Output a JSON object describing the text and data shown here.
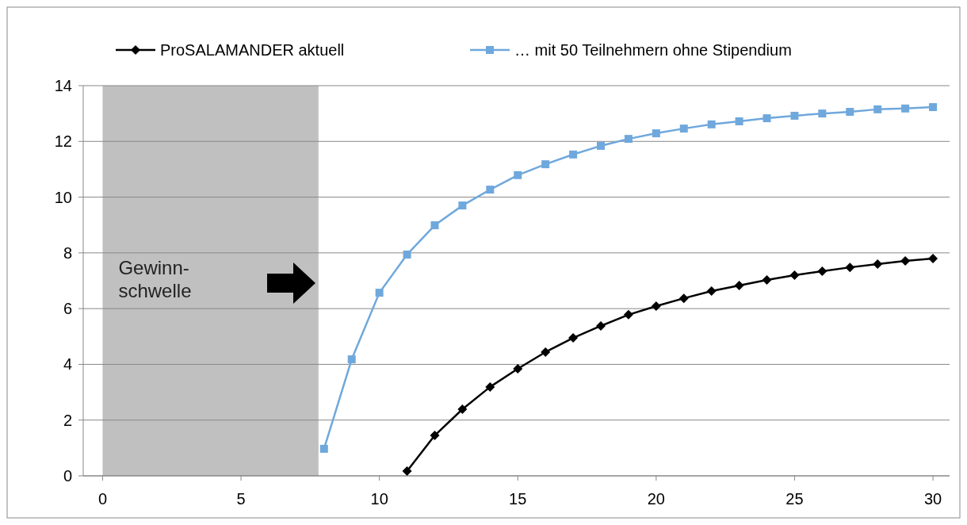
{
  "chart_data": {
    "type": "line",
    "xlim": [
      -0.7,
      30.6
    ],
    "xticks": [
      0,
      5,
      10,
      15,
      20,
      25,
      30
    ],
    "ylim": [
      0,
      14
    ],
    "yticks": [
      0,
      2,
      4,
      6,
      8,
      10,
      12,
      14
    ],
    "grid": "y",
    "legend": "top",
    "line_style": "solid",
    "bands": [
      {
        "axis": "x",
        "from": 0,
        "to": 7.8,
        "label": "Gewinn-\nschwelle",
        "color": "#c0c0c0"
      }
    ],
    "series": [
      {
        "name": "ProSALAMANDER aktuell",
        "color": "#000000",
        "marker": "diamond",
        "x": [
          11,
          12,
          13,
          14,
          15,
          16,
          17,
          18,
          19,
          20,
          21,
          22,
          23,
          24,
          25,
          26,
          27,
          28,
          29,
          30
        ],
        "values": [
          0.17,
          1.45,
          2.39,
          3.19,
          3.84,
          4.44,
          4.95,
          5.38,
          5.78,
          6.09,
          6.37,
          6.63,
          6.83,
          7.03,
          7.2,
          7.34,
          7.48,
          7.6,
          7.71,
          7.8
        ]
      },
      {
        "name": "… mit 50 Teilnehmern ohne Stipendium",
        "color": "#6fa8dc",
        "marker": "square",
        "x": [
          8,
          9,
          10,
          11,
          12,
          13,
          14,
          15,
          16,
          17,
          18,
          19,
          20,
          21,
          22,
          23,
          24,
          25,
          26,
          27,
          28,
          29,
          30
        ],
        "values": [
          0.97,
          4.18,
          6.57,
          7.94,
          8.99,
          9.7,
          10.27,
          10.79,
          11.18,
          11.53,
          11.84,
          12.09,
          12.29,
          12.46,
          12.61,
          12.72,
          12.83,
          12.92,
          13.0,
          13.06,
          13.15,
          13.18,
          13.23
        ]
      }
    ]
  }
}
